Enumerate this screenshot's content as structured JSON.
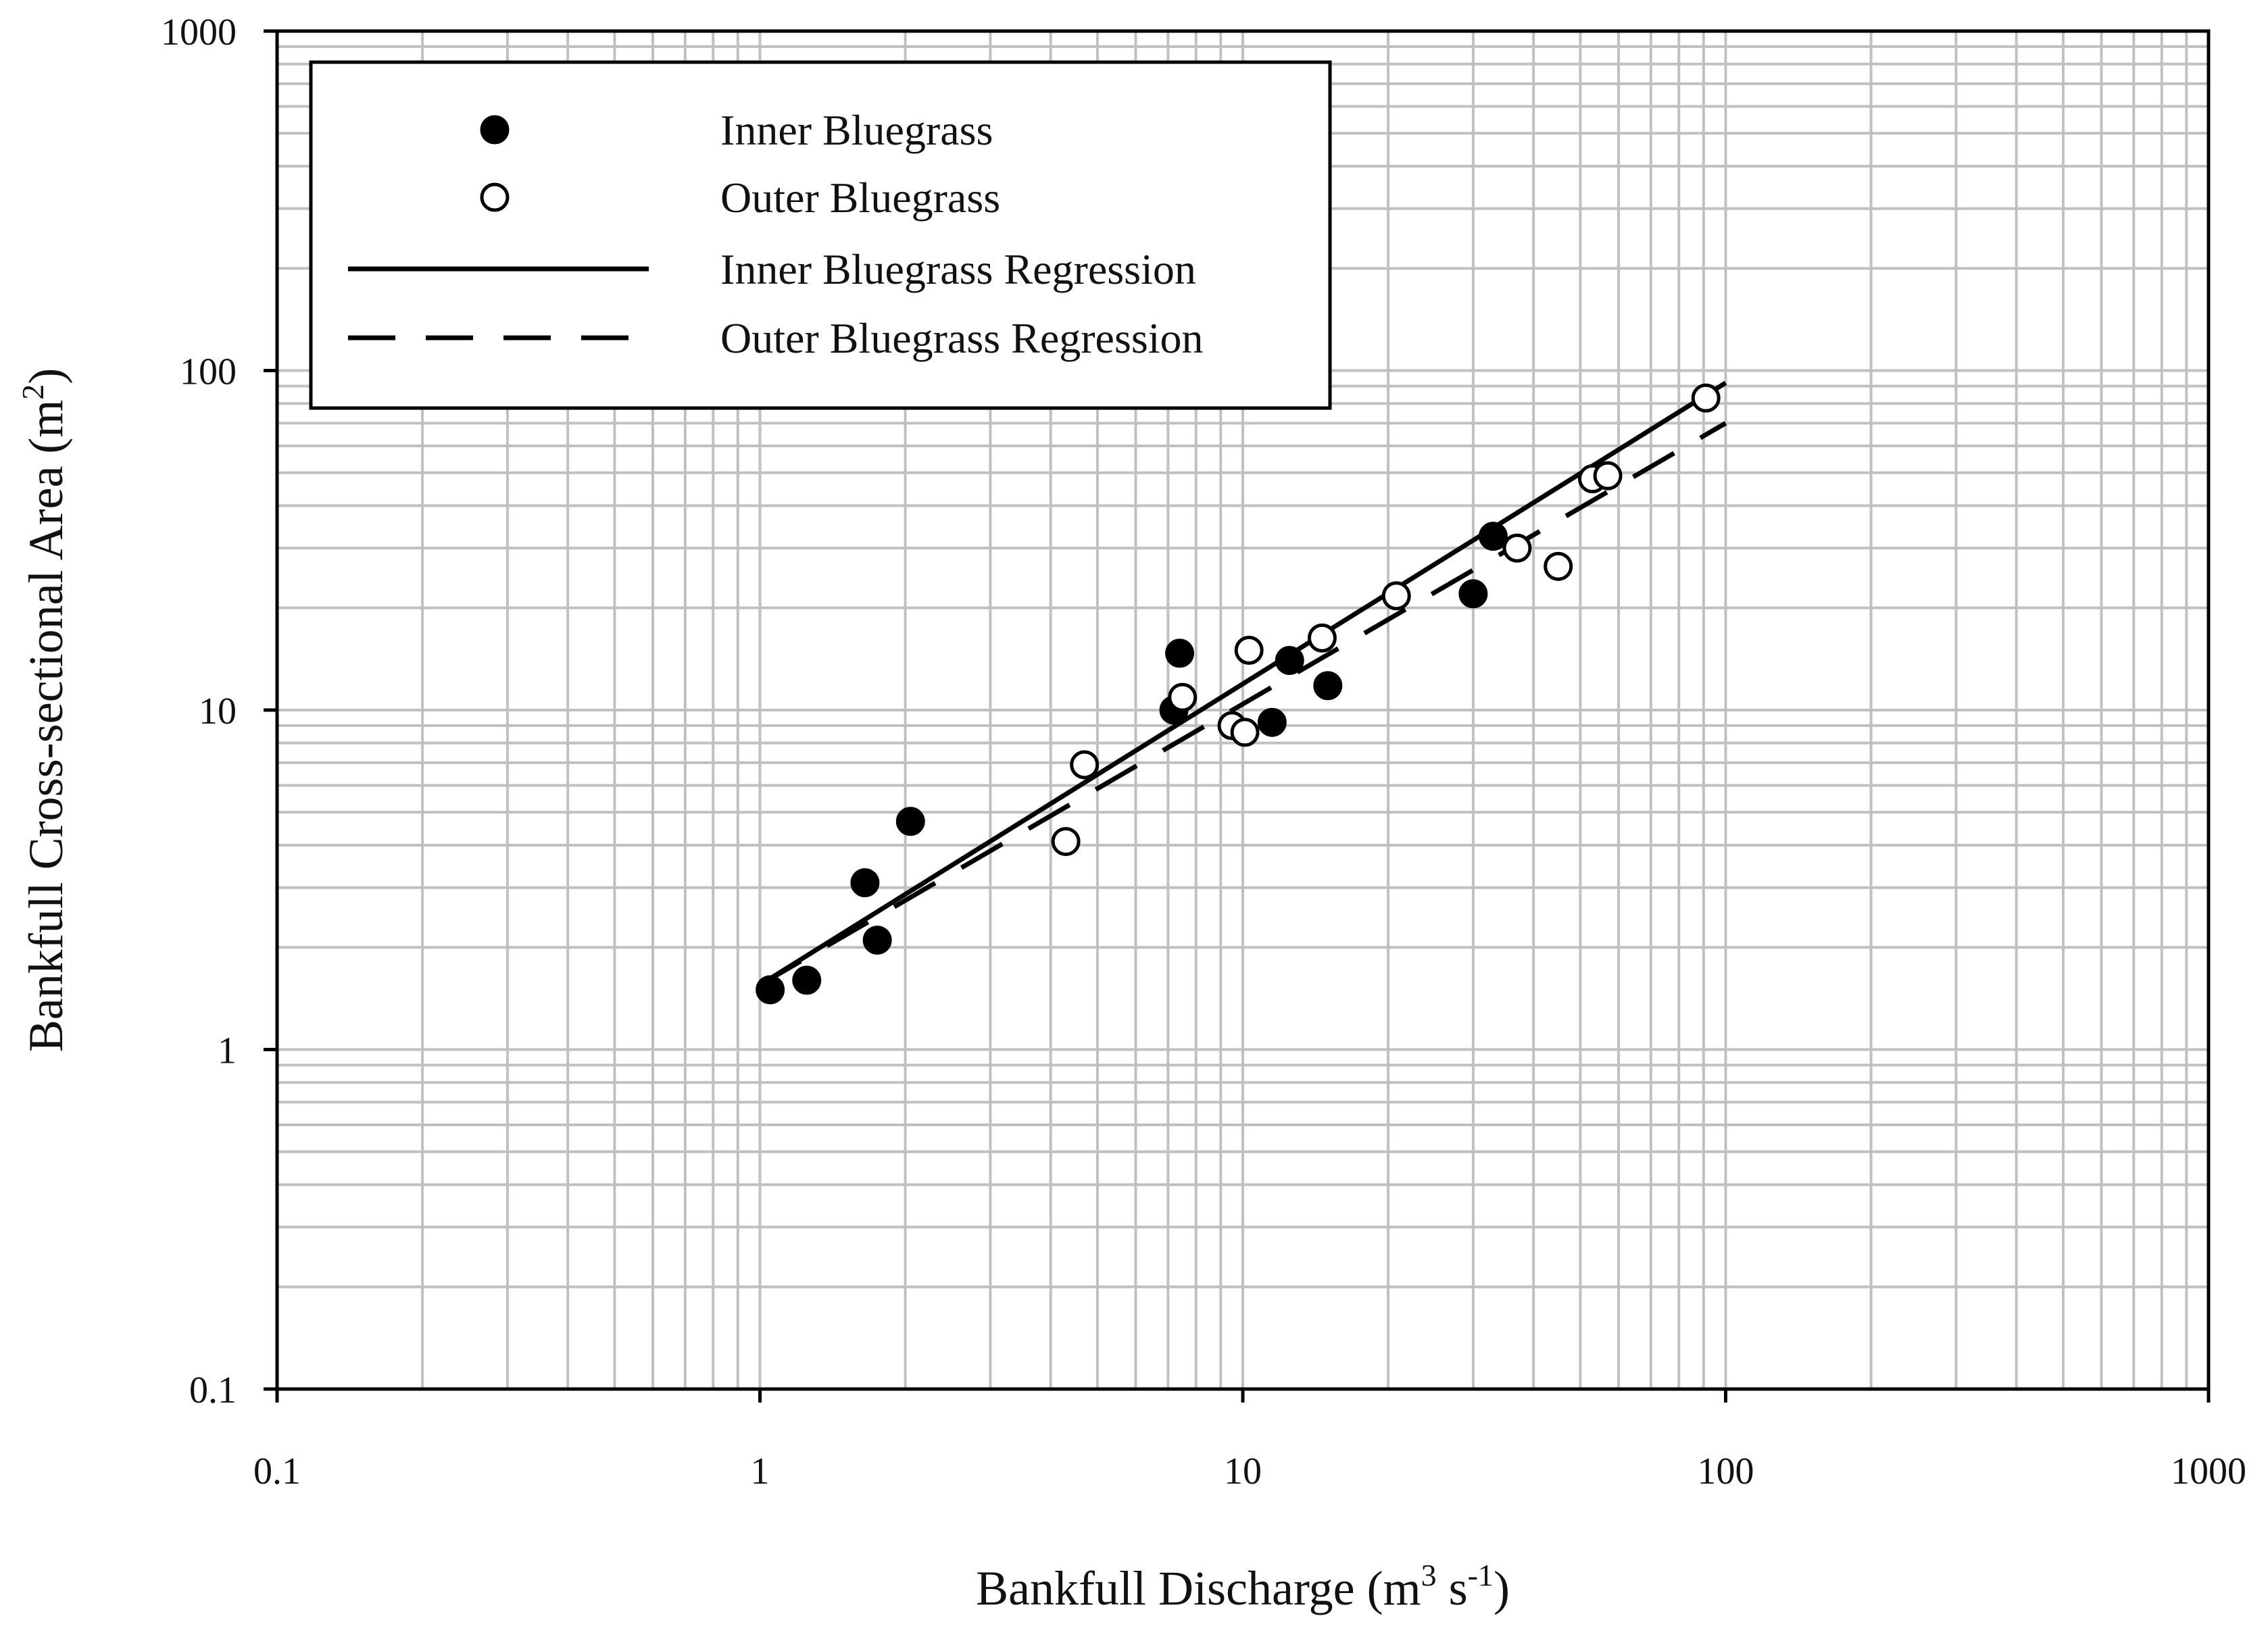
{
  "chart_data": {
    "type": "scatter",
    "xscale": "log",
    "yscale": "log",
    "xlim": [
      0.1,
      1000
    ],
    "ylim": [
      0.1,
      1000
    ],
    "grid": true,
    "legend_position": "top-left",
    "x_ticks": [
      "0.1",
      "1",
      "10",
      "100",
      "1000"
    ],
    "y_ticks": [
      "0.1",
      "1",
      "10",
      "100",
      "1000"
    ],
    "xlabel": {
      "base": "Bankfull Discharge (m",
      "sup1": "3",
      "mid": " s",
      "sup2": "-1",
      "end": ")"
    },
    "ylabel": {
      "base": "Bankfull Cross-sectional Area (m",
      "sup": "2",
      "end": ")"
    },
    "series": [
      {
        "name": "Inner Bluegrass",
        "marker": "filled-circle",
        "color": "#000000",
        "x": [
          1.05,
          1.25,
          1.65,
          1.75,
          2.05,
          7.2,
          7.4,
          11.5,
          12.5,
          15.0,
          30.0,
          33.0
        ],
        "y": [
          1.5,
          1.6,
          3.1,
          2.1,
          4.7,
          10.0,
          14.7,
          9.2,
          14.0,
          11.8,
          22.0,
          32.5
        ]
      },
      {
        "name": "Outer Bluegrass",
        "marker": "open-circle",
        "color": "#000000",
        "x": [
          4.3,
          4.7,
          7.5,
          9.5,
          10.1,
          10.3,
          14.6,
          20.8,
          37.0,
          45.0,
          53.0,
          57.0,
          91.0
        ],
        "y": [
          4.1,
          6.9,
          10.9,
          9.0,
          8.6,
          15.0,
          16.3,
          21.7,
          30.0,
          26.5,
          48.0,
          49.0,
          83.0
        ]
      },
      {
        "name": "Inner Bluegrass Regression",
        "line_style": "solid",
        "color": "#000000",
        "x": [
          1.0,
          100.0
        ],
        "y": [
          1.55,
          92.0
        ]
      },
      {
        "name": "Outer Bluegrass Regression",
        "line_style": "dashed",
        "color": "#000000",
        "x": [
          1.0,
          100.0
        ],
        "y": [
          1.55,
          70.0
        ]
      }
    ]
  }
}
